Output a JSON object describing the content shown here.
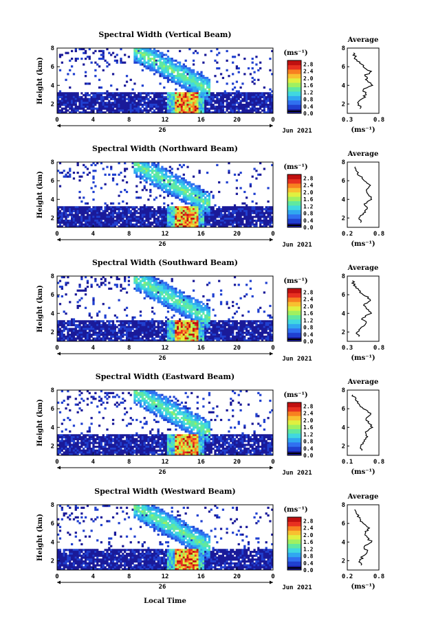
{
  "colorbar": {
    "unit_label": "(ms⁻¹)",
    "ticks": [
      "0.0",
      "0.4",
      "0.8",
      "1.2",
      "1.6",
      "2.0",
      "2.4",
      "2.8"
    ],
    "colors": [
      "#1a1a99",
      "#2040d0",
      "#3070f0",
      "#30a8f0",
      "#40d8e0",
      "#60e8a0",
      "#a0f060",
      "#e0f040",
      "#f8c030",
      "#f88020",
      "#e83020",
      "#c01010"
    ]
  },
  "shared": {
    "ylabel": "Height (km)",
    "date_label": "Jun 2021",
    "day_label": "26",
    "xlabel": "Local Time",
    "x_ticks": [
      "0",
      "4",
      "8",
      "12",
      "16",
      "20",
      "0"
    ],
    "y_ticks": [
      "2",
      "4",
      "6",
      "8"
    ],
    "avg_title": "Average",
    "avg_unit": "(ms⁻¹)"
  },
  "chart_data": [
    {
      "type": "heatmap",
      "title": "Spectral Width (Vertical Beam)",
      "xlabel": "",
      "ylabel": "Height (km)",
      "xlim": [
        0,
        24
      ],
      "ylim": [
        1,
        8
      ],
      "value_range": [
        0.0,
        2.8
      ],
      "average": {
        "type": "line",
        "title": "Average",
        "xlim": [
          0.3,
          0.8
        ],
        "x_ticks": [
          "0.3",
          "0.8"
        ],
        "ylim": [
          1,
          8
        ],
        "height_km": [
          1.5,
          2.0,
          2.5,
          3.0,
          3.5,
          4.0,
          4.5,
          5.0,
          5.5,
          6.0,
          6.5,
          7.0,
          7.5
        ],
        "width_ms": [
          0.5,
          0.48,
          0.52,
          0.6,
          0.55,
          0.7,
          0.62,
          0.58,
          0.68,
          0.55,
          0.5,
          0.42,
          0.4
        ]
      }
    },
    {
      "type": "heatmap",
      "title": "Spectral Width (Northward Beam)",
      "xlabel": "",
      "ylabel": "Height (km)",
      "xlim": [
        0,
        24
      ],
      "ylim": [
        1,
        8
      ],
      "value_range": [
        0.0,
        2.8
      ],
      "average": {
        "type": "line",
        "title": "Average",
        "xlim": [
          0.2,
          0.8
        ],
        "x_ticks": [
          "0.2",
          "0.8"
        ],
        "ylim": [
          1,
          8
        ],
        "height_km": [
          1.5,
          2.0,
          2.5,
          3.0,
          3.5,
          4.0,
          4.5,
          5.0,
          5.5,
          6.0,
          6.5,
          7.0,
          7.5
        ],
        "width_ms": [
          0.45,
          0.42,
          0.5,
          0.58,
          0.52,
          0.66,
          0.6,
          0.56,
          0.64,
          0.52,
          0.44,
          0.38,
          0.35
        ]
      }
    },
    {
      "type": "heatmap",
      "title": "Spectral Width (Southward Beam)",
      "xlabel": "",
      "ylabel": "Height (km)",
      "xlim": [
        0,
        24
      ],
      "ylim": [
        1,
        8
      ],
      "value_range": [
        0.0,
        2.8
      ],
      "average": {
        "type": "line",
        "title": "Average",
        "xlim": [
          0.3,
          0.8
        ],
        "x_ticks": [
          "0.3",
          "0.8"
        ],
        "ylim": [
          1,
          8
        ],
        "height_km": [
          1.5,
          2.0,
          2.5,
          3.0,
          3.5,
          4.0,
          4.5,
          5.0,
          5.5,
          6.0,
          6.5,
          7.0,
          7.5
        ],
        "width_ms": [
          0.48,
          0.46,
          0.52,
          0.6,
          0.54,
          0.68,
          0.6,
          0.57,
          0.66,
          0.55,
          0.48,
          0.4,
          0.38
        ]
      }
    },
    {
      "type": "heatmap",
      "title": "Spectral Width (Eastward Beam)",
      "xlabel": "",
      "ylabel": "Height (km)",
      "xlim": [
        0,
        24
      ],
      "ylim": [
        1,
        8
      ],
      "value_range": [
        0.0,
        2.8
      ],
      "average": {
        "type": "line",
        "title": "Average",
        "xlim": [
          0.1,
          0.8
        ],
        "x_ticks": [
          "0.1",
          "0.8"
        ],
        "ylim": [
          1,
          8
        ],
        "height_km": [
          1.5,
          2.0,
          2.5,
          3.0,
          3.5,
          4.0,
          4.5,
          5.0,
          5.5,
          6.0,
          6.5,
          7.0,
          7.5
        ],
        "width_ms": [
          0.42,
          0.4,
          0.48,
          0.55,
          0.5,
          0.66,
          0.56,
          0.52,
          0.62,
          0.45,
          0.36,
          0.28,
          0.22
        ]
      }
    },
    {
      "type": "heatmap",
      "title": "Spectral Width (Westward Beam)",
      "xlabel": "",
      "ylabel": "Height (km)",
      "xlim": [
        0,
        24
      ],
      "ylim": [
        1,
        8
      ],
      "value_range": [
        0.0,
        2.8
      ],
      "average": {
        "type": "line",
        "title": "Average",
        "xlim": [
          0.2,
          0.8
        ],
        "x_ticks": [
          "0.2",
          "0.8"
        ],
        "ylim": [
          1,
          8
        ],
        "height_km": [
          1.5,
          2.0,
          2.5,
          3.0,
          3.5,
          4.0,
          4.5,
          5.0,
          5.5,
          6.0,
          6.5,
          7.0,
          7.5
        ],
        "width_ms": [
          0.46,
          0.44,
          0.5,
          0.58,
          0.52,
          0.66,
          0.58,
          0.55,
          0.62,
          0.5,
          0.44,
          0.38,
          0.34
        ]
      }
    }
  ]
}
